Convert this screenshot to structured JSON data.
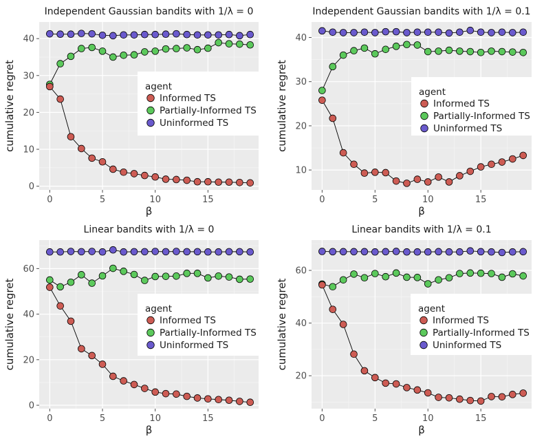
{
  "agents": [
    {
      "name": "Informed TS",
      "color": "#cd5c54"
    },
    {
      "name": "Partially-Informed TS",
      "color": "#5cc95c"
    },
    {
      "name": "Uninformed TS",
      "color": "#6a5acd"
    }
  ],
  "legend_title": "agent",
  "chart_data": [
    {
      "type": "line",
      "title": "Independent Gaussian bandits with 1/λ = 0",
      "xlabel": "β",
      "ylabel": "cumulative regret",
      "x": [
        0,
        1,
        2,
        3,
        4,
        5,
        6,
        7,
        8,
        9,
        10,
        11,
        12,
        13,
        14,
        15,
        16,
        17,
        18,
        19
      ],
      "xlim": [
        -1,
        19.8
      ],
      "ylim": [
        -1,
        44.5
      ],
      "xticks": [
        0,
        5,
        10,
        15
      ],
      "yticks": [
        0,
        10,
        20,
        30,
        40
      ],
      "legend_position": "right",
      "series": [
        {
          "name": "Informed TS",
          "values": [
            27.0,
            23.6,
            13.4,
            10.2,
            7.6,
            6.6,
            4.6,
            3.8,
            3.4,
            2.9,
            2.5,
            1.9,
            1.8,
            1.6,
            1.2,
            1.2,
            1.1,
            1.1,
            1.0,
            0.9
          ]
        },
        {
          "name": "Partially-Informed TS",
          "values": [
            27.6,
            33.2,
            35.2,
            37.3,
            37.6,
            36.6,
            35.0,
            35.5,
            35.6,
            36.4,
            36.6,
            37.2,
            37.3,
            37.5,
            37.0,
            37.4,
            38.9,
            38.6,
            38.5,
            38.3
          ]
        },
        {
          "name": "Uninformed TS",
          "values": [
            41.3,
            41.2,
            41.2,
            41.4,
            41.3,
            40.9,
            40.8,
            41.0,
            41.0,
            41.1,
            41.1,
            41.2,
            41.3,
            41.1,
            41.0,
            41.0,
            41.0,
            41.1,
            40.8,
            41.1
          ]
        }
      ]
    },
    {
      "type": "line",
      "title": "Independent Gaussian bandits with 1/λ = 0.1",
      "xlabel": "β",
      "ylabel": "cumulative regret",
      "x": [
        0,
        1,
        2,
        3,
        4,
        5,
        6,
        7,
        8,
        9,
        10,
        11,
        12,
        13,
        14,
        15,
        16,
        17,
        18,
        19
      ],
      "xlim": [
        -1,
        19.8
      ],
      "ylim": [
        5.5,
        43.5
      ],
      "xticks": [
        0,
        5,
        10,
        15
      ],
      "yticks": [
        10,
        20,
        30,
        40
      ],
      "legend_position": "right",
      "series": [
        {
          "name": "Informed TS",
          "values": [
            25.8,
            21.7,
            13.9,
            11.3,
            9.3,
            9.5,
            9.4,
            7.5,
            7.0,
            7.9,
            7.3,
            8.4,
            7.3,
            8.7,
            9.7,
            10.7,
            11.3,
            11.8,
            12.5,
            13.3
          ]
        },
        {
          "name": "Partially-Informed TS",
          "values": [
            28.0,
            33.4,
            36.0,
            37.0,
            37.6,
            36.3,
            37.3,
            38.0,
            38.4,
            38.3,
            36.8,
            36.9,
            37.1,
            36.9,
            36.8,
            36.6,
            36.9,
            36.8,
            36.7,
            36.6
          ]
        },
        {
          "name": "Uninformed TS",
          "values": [
            41.5,
            41.2,
            41.1,
            41.1,
            41.2,
            41.1,
            41.3,
            41.3,
            41.1,
            41.2,
            41.2,
            41.2,
            41.0,
            41.2,
            41.6,
            41.2,
            41.1,
            41.2,
            41.1,
            41.2
          ]
        }
      ]
    },
    {
      "type": "line",
      "title": "Linear bandits with 1/λ = 0",
      "xlabel": "β",
      "ylabel": "cumulative regret",
      "x": [
        0,
        1,
        2,
        3,
        4,
        5,
        6,
        7,
        8,
        9,
        10,
        11,
        12,
        13,
        14,
        15,
        16,
        17,
        18,
        19
      ],
      "xlim": [
        -1,
        19.8
      ],
      "ylim": [
        -1.5,
        72.5
      ],
      "xticks": [
        0,
        5,
        10,
        15
      ],
      "yticks": [
        0,
        20,
        40,
        60
      ],
      "legend_position": "right",
      "series": [
        {
          "name": "Informed TS",
          "values": [
            51.8,
            43.6,
            36.9,
            24.8,
            21.8,
            18.0,
            12.7,
            10.7,
            9.1,
            7.4,
            5.8,
            5.1,
            4.9,
            3.9,
            3.2,
            2.8,
            2.5,
            2.2,
            1.7,
            1.3
          ]
        },
        {
          "name": "Partially-Informed TS",
          "values": [
            55.0,
            52.0,
            54.0,
            57.3,
            53.6,
            56.8,
            60.1,
            58.8,
            57.4,
            54.8,
            56.5,
            56.6,
            56.7,
            57.9,
            57.9,
            55.9,
            56.7,
            56.3,
            55.3,
            55.4
          ]
        },
        {
          "name": "Uninformed TS",
          "values": [
            67.3,
            67.3,
            67.5,
            67.4,
            67.5,
            67.3,
            68.2,
            67.3,
            67.4,
            67.4,
            67.5,
            67.4,
            67.5,
            67.4,
            67.4,
            67.3,
            67.3,
            67.4,
            67.4,
            67.3
          ]
        }
      ]
    },
    {
      "type": "line",
      "title": "Linear bandits with 1/λ = 0.1",
      "xlabel": "β",
      "ylabel": "cumulative regret",
      "x": [
        0,
        1,
        2,
        3,
        4,
        5,
        6,
        7,
        8,
        9,
        10,
        11,
        12,
        13,
        14,
        15,
        16,
        17,
        18,
        19
      ],
      "xlim": [
        -1,
        19.8
      ],
      "ylim": [
        7.5,
        71.5
      ],
      "xticks": [
        0,
        5,
        10,
        15
      ],
      "yticks": [
        20,
        40,
        60
      ],
      "legend_position": "right",
      "series": [
        {
          "name": "Informed TS",
          "values": [
            54.5,
            45.2,
            39.5,
            28.2,
            21.9,
            19.3,
            17.2,
            16.9,
            15.5,
            14.6,
            13.5,
            11.8,
            11.6,
            11.1,
            10.6,
            10.4,
            12.1,
            12.0,
            12.9,
            13.4
          ]
        },
        {
          "name": "Partially-Informed TS",
          "values": [
            54.8,
            53.8,
            56.4,
            58.6,
            57.2,
            58.8,
            57.6,
            59.0,
            57.4,
            57.3,
            54.9,
            56.4,
            57.2,
            58.8,
            59.0,
            58.9,
            58.8,
            57.4,
            58.7,
            57.9
          ]
        },
        {
          "name": "Uninformed TS",
          "values": [
            67.2,
            67.1,
            67.1,
            67.1,
            67.1,
            67.0,
            67.1,
            67.2,
            67.0,
            67.0,
            67.0,
            67.1,
            67.0,
            67.0,
            67.4,
            67.1,
            67.0,
            66.8,
            67.0,
            67.1
          ]
        }
      ]
    }
  ]
}
